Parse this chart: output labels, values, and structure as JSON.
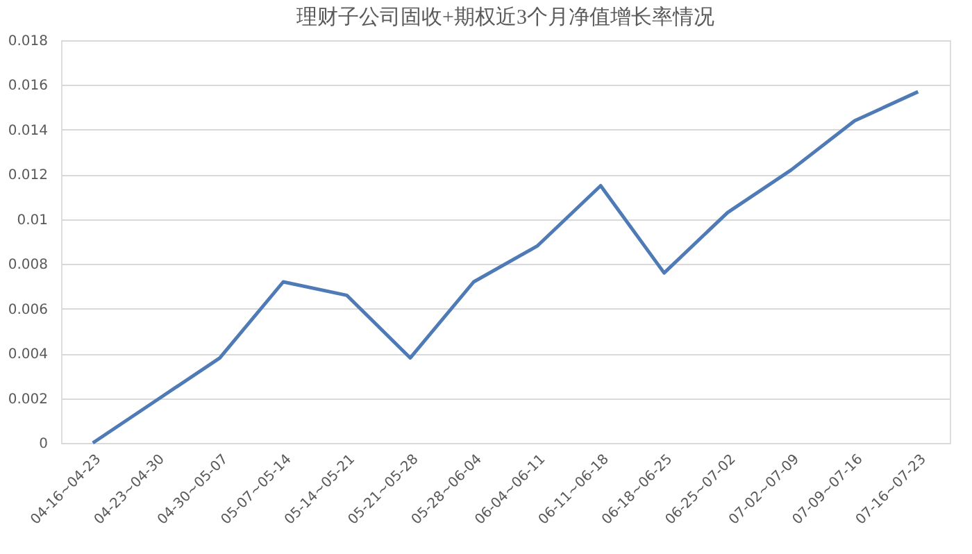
{
  "chart_data": {
    "type": "line",
    "title": "理财子公司固收+期权近3个月净值增长率情况",
    "categories": [
      "04-16~04-23",
      "04-23~04-30",
      "04-30~05-07",
      "05-07~05-14",
      "05-14~05-21",
      "05-21~05-28",
      "05-28~06-04",
      "06-04~06-11",
      "06-11~06-18",
      "06-18~06-25",
      "06-25~07-02",
      "07-02~07-09",
      "07-09~07-16",
      "07-16~07-23"
    ],
    "values": [
      0,
      0.0019,
      0.0038,
      0.0072,
      0.0066,
      0.0038,
      0.0072,
      0.0088,
      0.0115,
      0.0076,
      0.0103,
      0.0122,
      0.0144,
      0.0157
    ],
    "color": "#4e7ab5",
    "ylim": [
      0,
      0.018
    ],
    "yticks": [
      0,
      0.002,
      0.004,
      0.006,
      0.008,
      0.01,
      0.012,
      0.014,
      0.016,
      0.018
    ],
    "grid": "y",
    "marker": "none",
    "line_style": "solid"
  }
}
